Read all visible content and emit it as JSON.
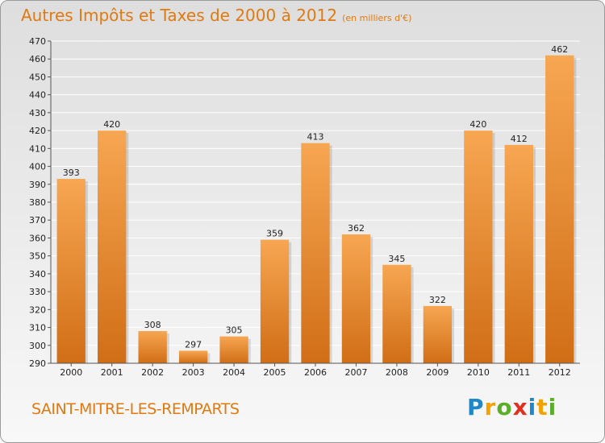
{
  "chart_data": {
    "type": "bar",
    "title": "Autres Impôts et Taxes de 2000 à 2012",
    "subtitle": "(en milliers d'€)",
    "categories": [
      "2000",
      "2001",
      "2002",
      "2003",
      "2004",
      "2005",
      "2006",
      "2007",
      "2008",
      "2009",
      "2010",
      "2011",
      "2012"
    ],
    "values": [
      393,
      420,
      308,
      297,
      305,
      359,
      413,
      362,
      345,
      322,
      420,
      412,
      462
    ],
    "ylim": [
      290,
      470
    ],
    "yticks": [
      290,
      300,
      310,
      320,
      330,
      340,
      350,
      360,
      370,
      380,
      390,
      400,
      410,
      420,
      430,
      440,
      450,
      460,
      470
    ],
    "grid": true,
    "bar_color": "#f29a3e",
    "bar_color_dark": "#d9751c"
  },
  "footer": {
    "commune": "SAINT-MITRE-LES-REMPARTS",
    "logo": {
      "p": "P",
      "r": "r",
      "o": "o",
      "x": "x",
      "i1": "i",
      "t": "t",
      "i2": "i"
    }
  }
}
